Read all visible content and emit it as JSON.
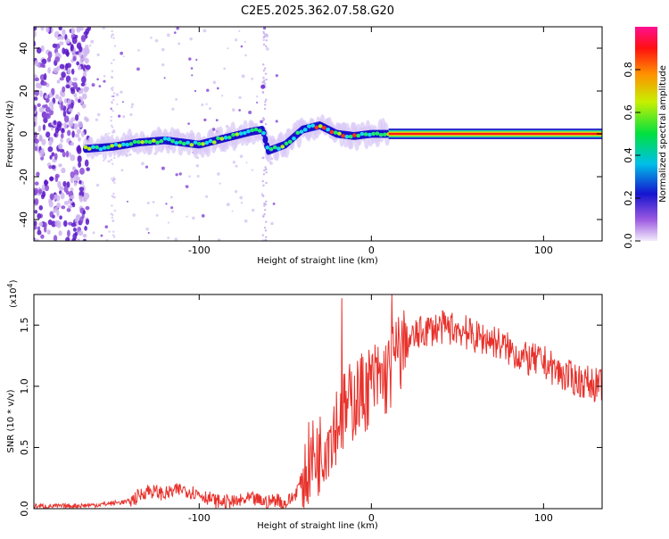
{
  "title": "C2E5.2025.362.07.58.G20",
  "chart_data": [
    {
      "type": "heatmap",
      "title": "C2E5.2025.362.07.58.G20",
      "xlabel": "Height of straight line (km)",
      "ylabel": "Frequency (Hz)",
      "xlim": [
        -196,
        134
      ],
      "ylim": [
        -50,
        50
      ],
      "xticks": [
        -100,
        0,
        100
      ],
      "yticks": [
        -40,
        -20,
        0,
        20,
        40
      ],
      "series": [
        {
          "name": "dominant frequency track",
          "x": [
            -166,
            -150,
            -135,
            -120,
            -100,
            -85,
            -70,
            -63,
            -60,
            -50,
            -40,
            -30,
            -20,
            -10,
            0,
            10,
            134
          ],
          "y": [
            -7,
            -6,
            -4,
            -3,
            -5,
            -2,
            1,
            2,
            -8,
            -5,
            2,
            4,
            0,
            -1,
            0,
            0,
            0
          ]
        }
      ],
      "colorbar": {
        "label": "Normalized spectral amplitude",
        "range": [
          0,
          1
        ],
        "ticks": [
          "0.0",
          "0.2",
          "0.4",
          "0.6",
          "0.8"
        ]
      }
    },
    {
      "type": "line",
      "xlabel": "Height of straight line (km)",
      "ylabel": "SNR (10 * v/v)",
      "multiplier": "(x10",
      "multiplier_exp": "4",
      "xlim": [
        -196,
        134
      ],
      "ylim": [
        0,
        1.75
      ],
      "xticks": [
        -100,
        0,
        100
      ],
      "yticks": [
        "0.0",
        "0.5",
        "1.0",
        "1.5"
      ],
      "series": [
        {
          "name": "SNR",
          "color": "#e8312b",
          "x": [
            -196,
            -180,
            -160,
            -140,
            -130,
            -120,
            -110,
            -100,
            -90,
            -80,
            -70,
            -60,
            -55,
            -50,
            -45,
            -40,
            -35,
            -30,
            -25,
            -20,
            -15,
            -10,
            -5,
            0,
            5,
            10,
            15,
            20,
            30,
            40,
            50,
            60,
            70,
            80,
            90,
            100,
            110,
            120,
            134
          ],
          "y": [
            0.02,
            0.02,
            0.03,
            0.06,
            0.15,
            0.12,
            0.16,
            0.12,
            0.06,
            0.05,
            0.08,
            0.05,
            0.08,
            0.04,
            0.1,
            0.25,
            0.4,
            0.45,
            0.6,
            0.72,
            0.8,
            0.9,
            0.95,
            1.02,
            1.05,
            1.1,
            1.25,
            1.35,
            1.45,
            1.48,
            1.47,
            1.4,
            1.38,
            1.3,
            1.22,
            1.2,
            1.1,
            1.05,
            1.0
          ]
        }
      ],
      "peaks": [
        {
          "x": -17,
          "y": 1.72
        },
        {
          "x": 12,
          "y": 1.75
        },
        {
          "x": 55,
          "y": 1.58
        }
      ]
    }
  ]
}
